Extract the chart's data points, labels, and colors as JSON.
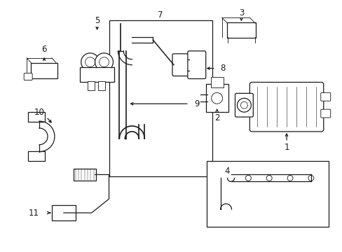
{
  "bg_color": "#ffffff",
  "line_color": "#1a1a1a",
  "lw": 0.9,
  "figsize": [
    4.89,
    3.6
  ],
  "dpi": 100
}
